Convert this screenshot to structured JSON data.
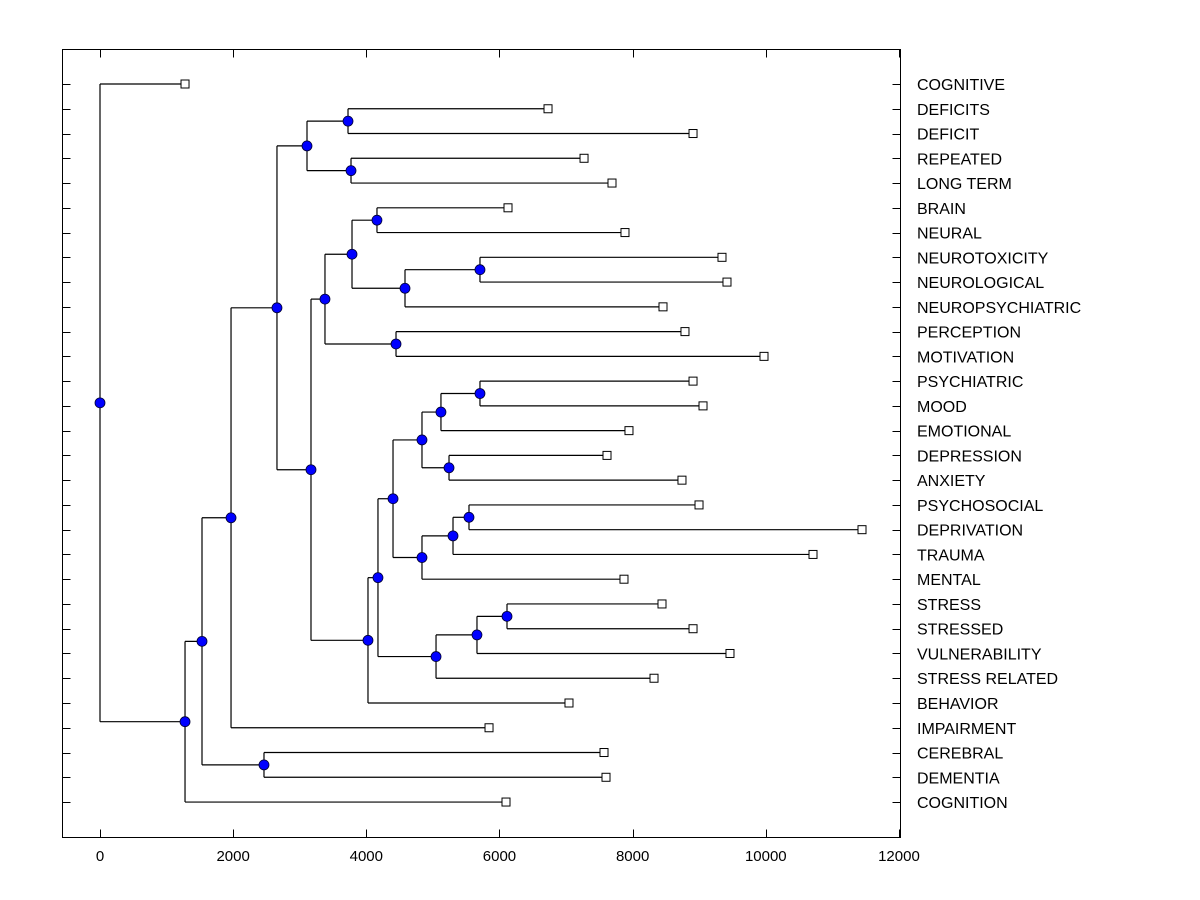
{
  "chart_data": {
    "type": "dendrogram",
    "title": "",
    "xlabel": "",
    "ylabel": "",
    "xlim": [
      -560,
      12030
    ],
    "x_ticks": [
      0,
      2000,
      4000,
      6000,
      8000,
      10000,
      12000
    ],
    "x_tick_labels": [
      "0",
      "2000",
      "4000",
      "6000",
      "8000",
      "10000",
      "12000"
    ],
    "grid": false,
    "legend": "none",
    "colors": {
      "node_fill": "#0000ff",
      "line": "#000000",
      "leaf_fill": "#ffffff"
    },
    "leaves": [
      {
        "label": "COGNITIVE",
        "value": 1277
      },
      {
        "label": "DEFICITS",
        "value": 6729
      },
      {
        "label": "DEFICIT",
        "value": 8907
      },
      {
        "label": "REPEATED",
        "value": 7270
      },
      {
        "label": "LONG TERM",
        "value": 7690
      },
      {
        "label": "BRAIN",
        "value": 6128
      },
      {
        "label": "NEURAL",
        "value": 7885
      },
      {
        "label": "NEUROTOXICITY",
        "value": 9342
      },
      {
        "label": "NEUROLOGICAL",
        "value": 9417
      },
      {
        "label": "NEUROPSYCHIATRIC",
        "value": 8456
      },
      {
        "label": "PERCEPTION",
        "value": 8786
      },
      {
        "label": "MOTIVATION",
        "value": 9973
      },
      {
        "label": "PSYCHIATRIC",
        "value": 8907
      },
      {
        "label": "MOOD",
        "value": 9057
      },
      {
        "label": "EMOTIONAL",
        "value": 7945
      },
      {
        "label": "DEPRESSION",
        "value": 7615
      },
      {
        "label": "ANXIETY",
        "value": 8741
      },
      {
        "label": "PSYCHOSOCIAL",
        "value": 8997
      },
      {
        "label": "DEPRIVATION",
        "value": 11445
      },
      {
        "label": "TRAUMA",
        "value": 10709
      },
      {
        "label": "MENTAL",
        "value": 7870
      },
      {
        "label": "STRESS",
        "value": 8441
      },
      {
        "label": "STRESSED",
        "value": 8907
      },
      {
        "label": "VULNERABILITY",
        "value": 9462
      },
      {
        "label": "STRESS RELATED",
        "value": 8321
      },
      {
        "label": "BEHAVIOR",
        "value": 7044
      },
      {
        "label": "IMPAIRMENT",
        "value": 5843
      },
      {
        "label": "CEREBRAL",
        "value": 7570
      },
      {
        "label": "DEMENTIA",
        "value": 7600
      },
      {
        "label": "COGNITION",
        "value": 6098
      }
    ],
    "tree": {
      "value": 0,
      "children": [
        {
          "leaf": 0
        },
        {
          "value": 1277,
          "children": [
            {
              "value": 1532,
              "children": [
                {
                  "value": 1968,
                  "children": [
                    {
                      "value": 2658,
                      "children": [
                        {
                          "value": 3109,
                          "children": [
                            {
                              "value": 3725,
                              "children": [
                                {
                                  "leaf": 1
                                },
                                {
                                  "leaf": 2
                                }
                              ]
                            },
                            {
                              "value": 3770,
                              "children": [
                                {
                                  "leaf": 3
                                },
                                {
                                  "leaf": 4
                                }
                              ]
                            }
                          ]
                        },
                        {
                          "value": 3169,
                          "children": [
                            {
                              "value": 3379,
                              "children": [
                                {
                                  "value": 3785,
                                  "children": [
                                    {
                                      "value": 4160,
                                      "children": [
                                        {
                                          "leaf": 5
                                        },
                                        {
                                          "leaf": 6
                                        }
                                      ]
                                    },
                                    {
                                      "value": 4581,
                                      "children": [
                                        {
                                          "value": 5707,
                                          "children": [
                                            {
                                              "leaf": 7
                                            },
                                            {
                                              "leaf": 8
                                            }
                                          ]
                                        },
                                        {
                                          "leaf": 9
                                        }
                                      ]
                                    }
                                  ]
                                },
                                {
                                  "value": 4446,
                                  "children": [
                                    {
                                      "leaf": 10
                                    },
                                    {
                                      "leaf": 11
                                    }
                                  ]
                                }
                              ]
                            },
                            {
                              "value": 4025,
                              "children": [
                                {
                                  "value": 4175,
                                  "children": [
                                    {
                                      "value": 4401,
                                      "children": [
                                        {
                                          "value": 4836,
                                          "children": [
                                            {
                                              "value": 5121,
                                              "children": [
                                                {
                                                  "value": 5707,
                                                  "children": [
                                                    {
                                                      "leaf": 12
                                                    },
                                                    {
                                                      "leaf": 13
                                                    }
                                                  ]
                                                },
                                                {
                                                  "leaf": 14
                                                }
                                              ]
                                            },
                                            {
                                              "value": 5242,
                                              "children": [
                                                {
                                                  "leaf": 15
                                                },
                                                {
                                                  "leaf": 16
                                                }
                                              ]
                                            }
                                          ]
                                        },
                                        {
                                          "value": 4836,
                                          "children": [
                                            {
                                              "value": 5302,
                                              "children": [
                                                {
                                                  "value": 5542,
                                                  "children": [
                                                    {
                                                      "leaf": 17
                                                    },
                                                    {
                                                      "leaf": 18
                                                    }
                                                  ]
                                                },
                                                {
                                                  "leaf": 19
                                                }
                                              ]
                                            },
                                            {
                                              "leaf": 20
                                            }
                                          ]
                                        }
                                      ]
                                    },
                                    {
                                      "value": 5047,
                                      "children": [
                                        {
                                          "value": 5662,
                                          "children": [
                                            {
                                              "value": 6113,
                                              "children": [
                                                {
                                                  "leaf": 21
                                                },
                                                {
                                                  "leaf": 22
                                                }
                                              ]
                                            },
                                            {
                                              "leaf": 23
                                            }
                                          ]
                                        },
                                        {
                                          "leaf": 24
                                        }
                                      ]
                                    }
                                  ]
                                },
                                {
                                  "leaf": 25
                                }
                              ]
                            }
                          ]
                        }
                      ]
                    },
                    {
                      "leaf": 26
                    }
                  ]
                },
                {
                  "value": 2463,
                  "children": [
                    {
                      "leaf": 27
                    },
                    {
                      "leaf": 28
                    }
                  ]
                }
              ]
            },
            {
              "leaf": 29
            }
          ]
        }
      ]
    }
  }
}
